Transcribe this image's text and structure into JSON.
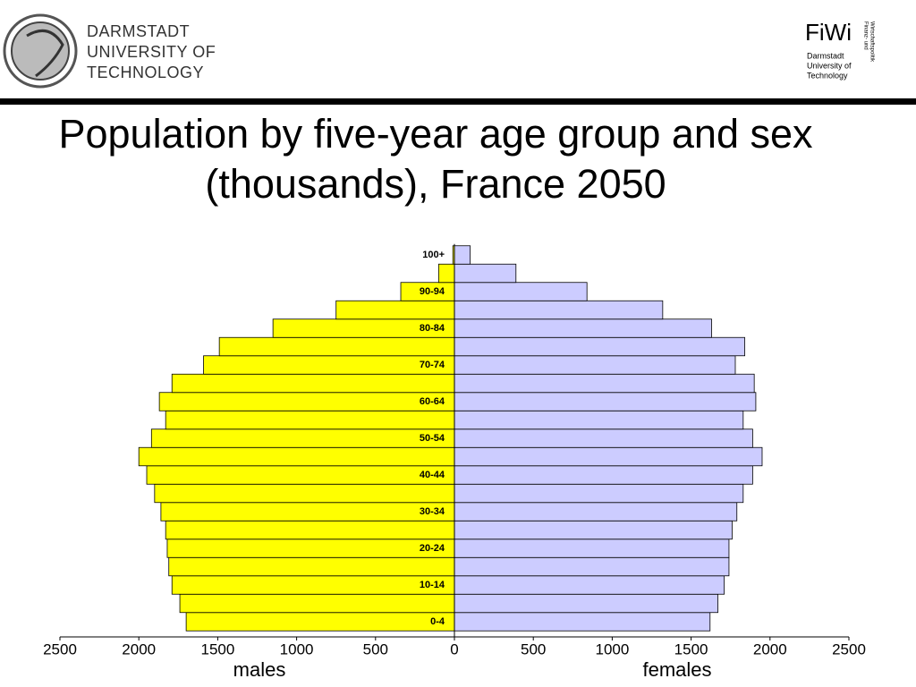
{
  "header": {
    "university": [
      "DARMSTADT",
      "UNIVERSITY OF",
      "TECHNOLOGY"
    ],
    "logo_text": "FiWi",
    "logo_sub": [
      "Darmstadt",
      "University of",
      "Technology"
    ],
    "logo_side": [
      "Finanz- und",
      "Wirtschaftspolitik"
    ]
  },
  "chart_data": {
    "type": "pyramid",
    "title": "Population by five-year age group and sex  (thousands), France 2050",
    "categories": [
      "0-4",
      null,
      "10-14",
      null,
      "20-24",
      null,
      "30-34",
      null,
      "40-44",
      null,
      "50-54",
      null,
      "60-64",
      null,
      "70-74",
      null,
      "80-84",
      null,
      "90-94",
      null,
      "100+"
    ],
    "series": [
      {
        "name": "males",
        "color": "#ffff00",
        "values": [
          -1700,
          -1740,
          -1790,
          -1810,
          -1820,
          -1830,
          -1860,
          -1900,
          -1950,
          -2000,
          -1920,
          -1830,
          -1870,
          -1790,
          -1590,
          -1490,
          -1150,
          -750,
          -340,
          -100,
          -10
        ]
      },
      {
        "name": "females",
        "color": "#ccccff",
        "values": [
          1620,
          1670,
          1710,
          1740,
          1740,
          1760,
          1790,
          1830,
          1890,
          1950,
          1890,
          1830,
          1910,
          1900,
          1780,
          1840,
          1630,
          1320,
          840,
          390,
          100
        ]
      }
    ],
    "xlim": [
      -2500,
      2500
    ],
    "xticks": [
      {
        "value": -2500,
        "label": "2500"
      },
      {
        "value": -2000,
        "label": "2000"
      },
      {
        "value": -1500,
        "label": "1500"
      },
      {
        "value": -1000,
        "label": "1000"
      },
      {
        "value": -500,
        "label": "500"
      },
      0,
      500,
      1000,
      1500,
      2000,
      2500
    ]
  }
}
